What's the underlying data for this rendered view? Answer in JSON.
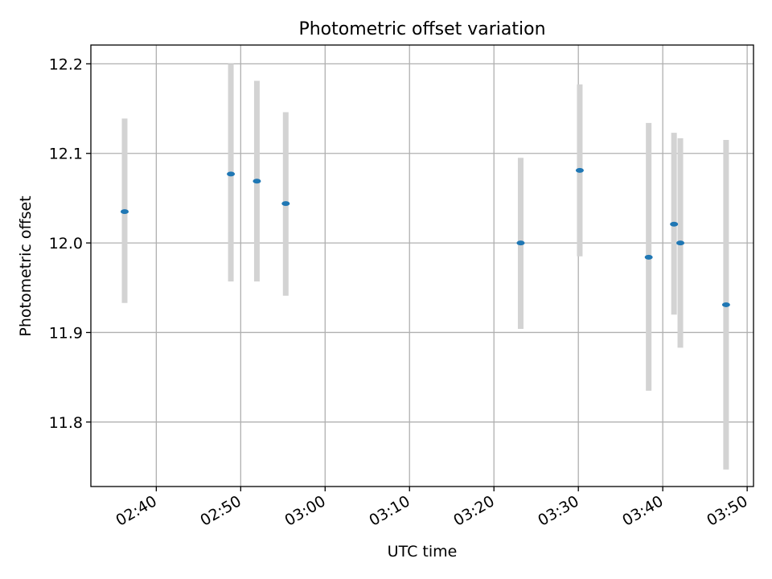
{
  "chart_data": {
    "type": "scatter",
    "title": "Photometric offset variation",
    "xlabel": "UTC time",
    "ylabel": "Photometric offset",
    "grid": true,
    "legend": "none",
    "x_ticks": [
      "02:40",
      "02:50",
      "03:00",
      "03:10",
      "03:20",
      "03:30",
      "03:40",
      "03:50"
    ],
    "y_ticks": [
      "11.8",
      "11.9",
      "12.0",
      "12.1",
      "12.2"
    ],
    "xlim": [
      "02:32:15",
      "03:50:45"
    ],
    "ylim": [
      11.728,
      12.221
    ],
    "colors": {
      "point": "#1f77b4",
      "errorbar": "#d3d3d3",
      "grid": "#b0b0b0"
    },
    "points": [
      {
        "x": "02:36:15",
        "y": 12.035,
        "ylow": 11.933,
        "yhigh": 12.139
      },
      {
        "x": "02:48:50",
        "y": 12.077,
        "ylow": 11.957,
        "yhigh": 12.2
      },
      {
        "x": "02:51:55",
        "y": 12.069,
        "ylow": 11.957,
        "yhigh": 12.181
      },
      {
        "x": "02:55:20",
        "y": 12.044,
        "ylow": 11.941,
        "yhigh": 12.146
      },
      {
        "x": "03:23:10",
        "y": 12.0,
        "ylow": 11.904,
        "yhigh": 12.095
      },
      {
        "x": "03:30:10",
        "y": 12.081,
        "ylow": 11.985,
        "yhigh": 12.177
      },
      {
        "x": "03:38:20",
        "y": 11.984,
        "ylow": 11.835,
        "yhigh": 12.134
      },
      {
        "x": "03:41:20",
        "y": 12.021,
        "ylow": 11.92,
        "yhigh": 12.123
      },
      {
        "x": "03:42:05",
        "y": 12.0,
        "ylow": 11.883,
        "yhigh": 12.117
      },
      {
        "x": "03:47:30",
        "y": 11.931,
        "ylow": 11.747,
        "yhigh": 12.115
      }
    ]
  }
}
